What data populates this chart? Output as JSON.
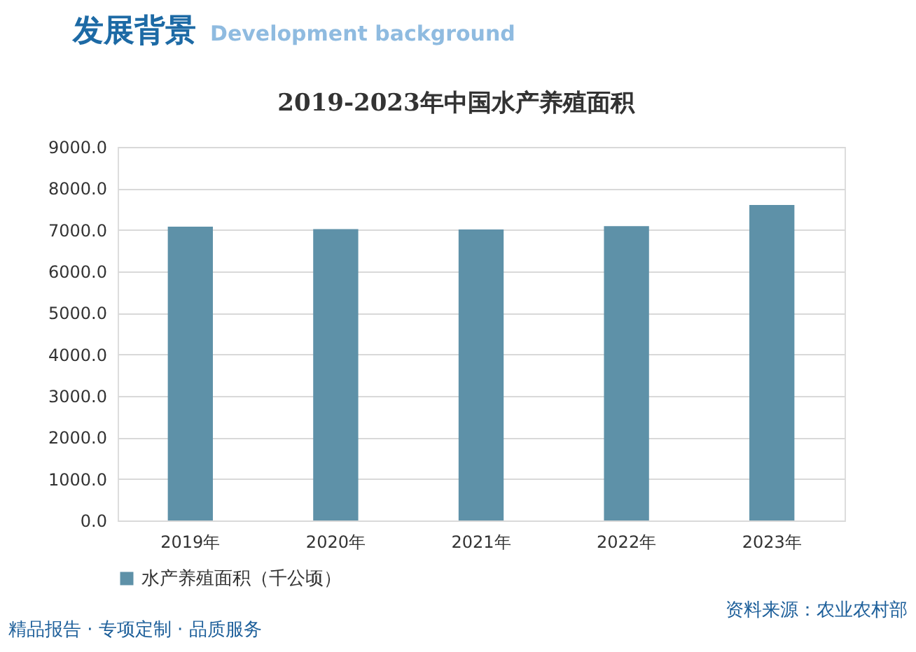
{
  "chart_data": {
    "type": "bar",
    "title": "2019-2023年中国水产养殖面积",
    "categories": [
      "2019年",
      "2020年",
      "2021年",
      "2022年",
      "2023年"
    ],
    "series": [
      {
        "name": "水产养殖面积（千公顷）",
        "color": "#5e91a8",
        "values": [
          7080,
          7020,
          7010,
          7090,
          7600
        ]
      }
    ],
    "ylim": [
      0,
      9000
    ],
    "yticks": [
      {
        "value": 0,
        "label": "0.0"
      },
      {
        "value": 1000,
        "label": "1000.0"
      },
      {
        "value": 2000,
        "label": "2000.0"
      },
      {
        "value": 3000,
        "label": "3000.0"
      },
      {
        "value": 4000,
        "label": "4000.0"
      },
      {
        "value": 5000,
        "label": "5000.0"
      },
      {
        "value": 6000,
        "label": "6000.0"
      },
      {
        "value": 7000,
        "label": "7000.0"
      },
      {
        "value": 8000,
        "label": "8000.0"
      },
      {
        "value": 9000,
        "label": "9000.0"
      }
    ],
    "grid": "y",
    "legend": "bottom",
    "annotations": [
      "发展背景",
      "Development background",
      "资料来源：农业农村部",
      "精品报告 · 专项定制 · 品质服务"
    ]
  }
}
